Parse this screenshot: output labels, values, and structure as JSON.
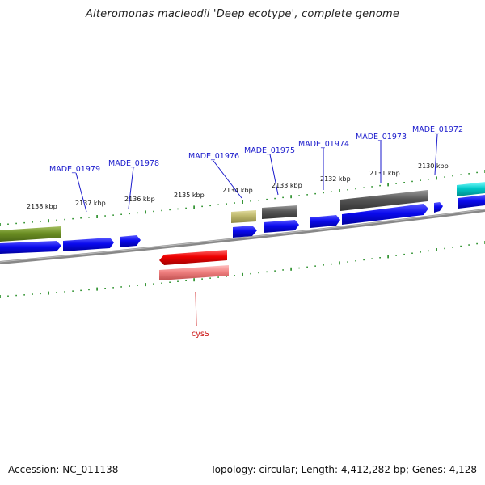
{
  "title": "Alteromonas macleodii 'Deep ecotype', complete genome",
  "footer": {
    "accession": "Accession: NC_011138",
    "topology": "Topology: circular; Length: 4,412,282 bp; Genes: 4,128"
  },
  "colors": {
    "forward_cds": "#0a0aee",
    "dark_gray_feature": "#555555",
    "olive_feature": "#6b8e23",
    "khaki_feature": "#bdb76b",
    "cyan_feature": "#00c8c8",
    "reverse_cds": "#ee0000",
    "reverse_light": "#f08080",
    "backbone": "#888888",
    "ticks": "#228b22",
    "label_forward": "#1a1acc",
    "label_reverse": "#cc1111"
  },
  "scale_labels": [
    "2138 kbp",
    "2137 kbp",
    "2136 kbp",
    "2135 kbp",
    "2134 kbp",
    "2133 kbp",
    "2132 kbp",
    "2131 kbp",
    "2130 kbp"
  ],
  "gene_labels": {
    "forward": [
      "MADE_01979",
      "MADE_01978",
      "MADE_01976",
      "MADE_01975",
      "MADE_01974",
      "MADE_01973",
      "MADE_01972"
    ],
    "reverse": [
      "cysS"
    ]
  }
}
